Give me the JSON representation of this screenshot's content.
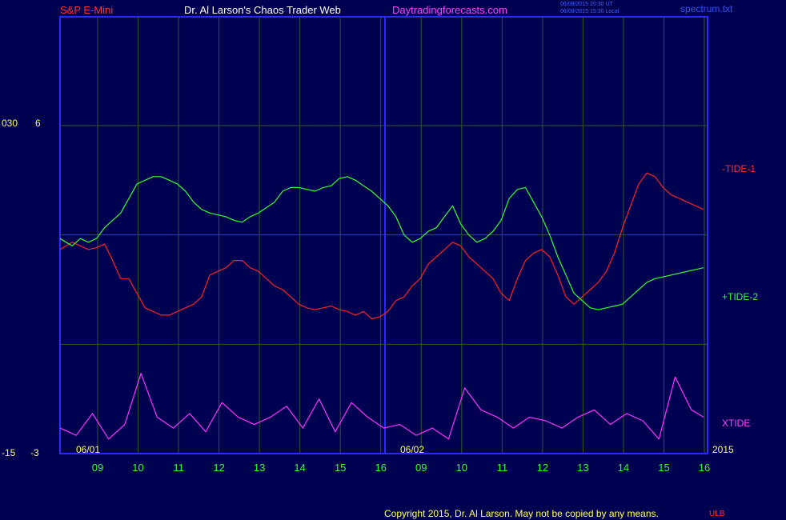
{
  "header": {
    "symbol": "S&P E-Mini",
    "author": "Dr. Al Larson's Chaos Trader Web",
    "site": "Daytradingforecasts.com",
    "timestamp_line1": "06/08/2015 20:30 UT",
    "timestamp_line2": "06/08/2015 15:30 Local",
    "filename": "spectrum.txt"
  },
  "left_axis": {
    "top_a": "030",
    "top_b": "6",
    "bottom_a": "-15",
    "bottom_b": "-3"
  },
  "date_labels": {
    "first": "06/01",
    "second": "06/02",
    "year": "2015"
  },
  "series_labels": {
    "tide1": "-TIDE-1",
    "tide2": "+TIDE-2",
    "xtide": "XTIDE"
  },
  "footer": {
    "copyright": "Copyright 2015, Dr. Al Larson. May not be copied by any means.",
    "mark": "ULB"
  },
  "colors": {
    "background": "#000050",
    "frame": "#2a2aff",
    "grid": "#2c5a2c",
    "tide1": "#ff2020",
    "tide2": "#30ff30",
    "xtide": "#ff30ff",
    "header_red": "#ff3030",
    "header_white": "#ffffff",
    "header_magenta": "#ff40ff",
    "tick_green": "#30ff30",
    "text_yellow": "#ffff60"
  },
  "chart_data": {
    "type": "line",
    "x_ticks": [
      "09",
      "10",
      "11",
      "12",
      "13",
      "14",
      "15",
      "16",
      "09",
      "10",
      "11",
      "12",
      "13",
      "14",
      "15",
      "16"
    ],
    "xlim": [
      0,
      160
    ],
    "ylim": [
      -3,
      6
    ],
    "series": [
      {
        "name": "-TIDE-1",
        "x": [
          0,
          3,
          5,
          7,
          9,
          11,
          13,
          15,
          17,
          19,
          21,
          23,
          25,
          27,
          29,
          31,
          33,
          35,
          37,
          39,
          41,
          43,
          45,
          47,
          49,
          51,
          53,
          55,
          57,
          59,
          61,
          63,
          65,
          67,
          69,
          71,
          73,
          75,
          77,
          79,
          81,
          83,
          85,
          87,
          89,
          91,
          93,
          95,
          97,
          99,
          101,
          103,
          105,
          107,
          109,
          111,
          113,
          115,
          117,
          119,
          121,
          123,
          125,
          127,
          129,
          131,
          133,
          135,
          137,
          139,
          141,
          143,
          145,
          147,
          149,
          151,
          153,
          155,
          157,
          159
        ],
        "y": [
          2.6,
          2.8,
          2.7,
          2.6,
          2.65,
          2.75,
          2.3,
          1.8,
          1.8,
          1.4,
          1.0,
          0.9,
          0.8,
          0.8,
          0.9,
          1.0,
          1.1,
          1.3,
          1.9,
          2.0,
          2.1,
          2.3,
          2.3,
          2.1,
          2.0,
          1.8,
          1.6,
          1.5,
          1.3,
          1.1,
          1.0,
          0.95,
          1.0,
          1.05,
          0.95,
          0.9,
          0.8,
          0.9,
          0.7,
          0.75,
          0.9,
          1.2,
          1.3,
          1.6,
          1.8,
          2.2,
          2.4,
          2.6,
          2.8,
          2.7,
          2.4,
          2.2,
          2.0,
          1.8,
          1.4,
          1.2,
          1.8,
          2.3,
          2.5,
          2.6,
          2.4,
          1.9,
          1.3,
          1.1,
          1.3,
          1.5,
          1.7,
          2.0,
          2.5,
          3.2,
          3.8,
          4.4,
          4.7,
          4.6,
          4.3,
          4.1,
          4.0,
          3.9,
          3.8,
          3.7
        ]
      },
      {
        "name": "+TIDE-2",
        "x": [
          0,
          3,
          5,
          7,
          9,
          11,
          13,
          15,
          17,
          19,
          21,
          23,
          25,
          27,
          29,
          31,
          33,
          35,
          37,
          39,
          41,
          43,
          45,
          47,
          49,
          51,
          53,
          55,
          57,
          59,
          61,
          63,
          65,
          67,
          69,
          71,
          73,
          75,
          77,
          79,
          81,
          83,
          85,
          87,
          89,
          91,
          93,
          95,
          97,
          99,
          101,
          103,
          105,
          107,
          109,
          111,
          113,
          115,
          117,
          119,
          121,
          123,
          125,
          127,
          129,
          131,
          133,
          135,
          137,
          139,
          141,
          143,
          145,
          147,
          149,
          151,
          153,
          155,
          157,
          159
        ],
        "y": [
          2.9,
          2.7,
          2.9,
          2.8,
          2.9,
          3.2,
          3.4,
          3.6,
          4.0,
          4.4,
          4.5,
          4.6,
          4.6,
          4.5,
          4.4,
          4.2,
          3.9,
          3.7,
          3.6,
          3.55,
          3.5,
          3.4,
          3.35,
          3.5,
          3.6,
          3.75,
          3.9,
          4.2,
          4.3,
          4.3,
          4.25,
          4.2,
          4.3,
          4.35,
          4.55,
          4.6,
          4.5,
          4.35,
          4.2,
          4.0,
          3.8,
          3.5,
          3.0,
          2.8,
          2.9,
          3.1,
          3.2,
          3.5,
          3.8,
          3.3,
          3.0,
          2.8,
          2.9,
          3.1,
          3.4,
          4.0,
          4.25,
          4.3,
          3.9,
          3.5,
          3.0,
          2.4,
          1.9,
          1.4,
          1.2,
          1.0,
          0.95,
          1.0,
          1.05,
          1.1,
          1.3,
          1.5,
          1.7,
          1.8,
          1.85,
          1.9,
          1.95,
          2.0,
          2.05,
          2.1
        ]
      },
      {
        "name": "XTIDE",
        "x": [
          0,
          4,
          8,
          12,
          16,
          20,
          24,
          28,
          32,
          36,
          40,
          44,
          48,
          52,
          56,
          60,
          64,
          68,
          72,
          76,
          80,
          84,
          88,
          92,
          96,
          100,
          104,
          108,
          112,
          116,
          120,
          124,
          128,
          132,
          136,
          140,
          144,
          148,
          152,
          156,
          159
        ],
        "y": [
          -2.3,
          -2.5,
          -1.9,
          -2.6,
          -2.2,
          -0.8,
          -2.0,
          -2.3,
          -1.9,
          -2.4,
          -1.6,
          -2.0,
          -2.2,
          -2.0,
          -1.7,
          -2.3,
          -1.5,
          -2.4,
          -1.6,
          -2.0,
          -2.3,
          -2.2,
          -2.5,
          -2.3,
          -2.6,
          -1.2,
          -1.8,
          -2.0,
          -2.3,
          -2.0,
          -2.1,
          -2.3,
          -2.0,
          -1.8,
          -2.2,
          -1.9,
          -2.1,
          -2.6,
          -0.9,
          -1.8,
          -2.0
        ]
      }
    ]
  }
}
